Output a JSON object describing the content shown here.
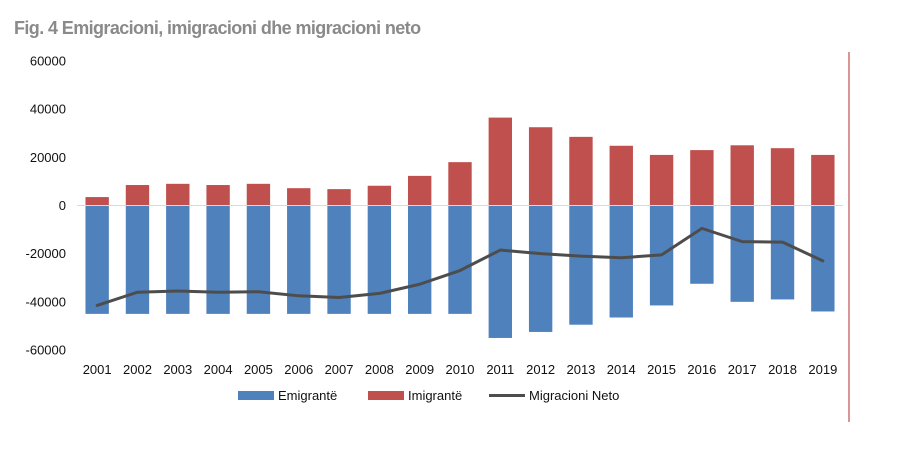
{
  "title": "Fig. 4 Emigracioni, imigracioni dhe migracioni neto",
  "chart_data": {
    "type": "bar",
    "categories": [
      "2001",
      "2002",
      "2003",
      "2004",
      "2005",
      "2006",
      "2007",
      "2008",
      "2009",
      "2010",
      "2011",
      "2012",
      "2013",
      "2014",
      "2015",
      "2016",
      "2017",
      "2018",
      "2019"
    ],
    "series": [
      {
        "name": "Emigrantë",
        "type": "bar",
        "color": "#4f81bd",
        "values": [
          -45000,
          -45000,
          -45000,
          -45000,
          -45000,
          -45000,
          -45000,
          -45000,
          -45000,
          -45000,
          -55000,
          -52500,
          -49500,
          -46500,
          -41500,
          -32500,
          -40000,
          -39000,
          -44000
        ]
      },
      {
        "name": "Imigrantë",
        "type": "bar",
        "color": "#c0504d",
        "values": [
          3500,
          8500,
          9000,
          8500,
          9000,
          7200,
          6800,
          8200,
          12300,
          18000,
          36500,
          32500,
          28500,
          24800,
          21000,
          23000,
          25000,
          23800,
          21000
        ]
      },
      {
        "name": "Migracioni Neto",
        "type": "line",
        "color": "#4d4d4d",
        "values": [
          -41500,
          -36000,
          -35500,
          -36000,
          -35800,
          -37500,
          -38200,
          -36500,
          -32700,
          -27000,
          -18500,
          -20000,
          -21000,
          -21700,
          -20500,
          -9500,
          -15000,
          -15200,
          -23000
        ]
      }
    ],
    "ylim": [
      -60000,
      60000
    ],
    "yticks": [
      60000,
      40000,
      20000,
      0,
      -20000,
      -40000,
      -60000
    ],
    "ytick_labels": [
      "60000",
      "40000",
      "20000",
      "0",
      "-20000",
      "-40000",
      "-60000"
    ],
    "legend_position": "bottom",
    "grid": false,
    "xlabel": "",
    "ylabel": ""
  }
}
